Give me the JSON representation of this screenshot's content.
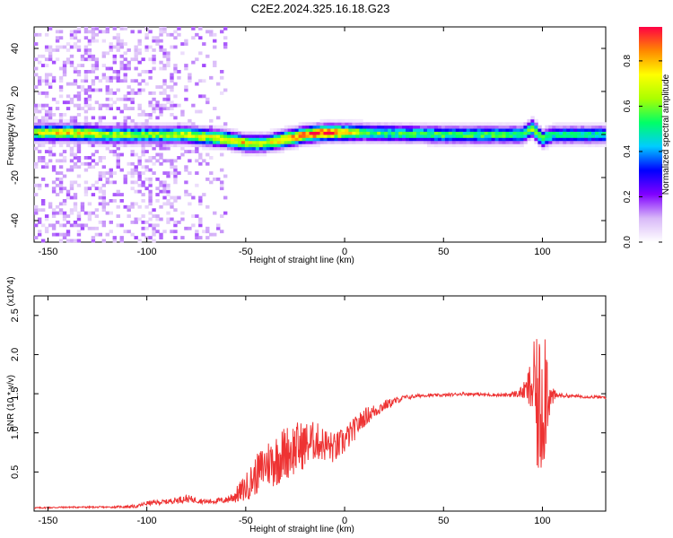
{
  "title": "C2E2.2024.325.16.18.G23",
  "chart_data": [
    {
      "type": "heatmap",
      "xlabel": "Height of straight line (km)",
      "ylabel": "Frequency (Hz)",
      "xlim": [
        -157,
        132
      ],
      "ylim": [
        -50,
        50
      ],
      "xticks": [
        -150,
        -100,
        -50,
        0,
        50,
        100
      ],
      "yticks": [
        -40,
        -20,
        0,
        20,
        40
      ],
      "colorbar": {
        "label": "Normalized spectral amplitude",
        "range": [
          0,
          0.95
        ],
        "ticks": [
          0.0,
          0.2,
          0.4,
          0.6,
          0.8
        ],
        "tick_labels": [
          "0.0",
          "0.2",
          "0.4",
          "0.6",
          "0.8"
        ],
        "colormap": [
          "#ffffff",
          "#d8b8f8",
          "#8000ff",
          "#0000ff",
          "#00ccff",
          "#00ff66",
          "#aaff00",
          "#ffff00",
          "#ff8800",
          "#ff0044"
        ]
      },
      "ridge": {
        "x": [
          -157,
          -140,
          -120,
          -100,
          -80,
          -70,
          -60,
          -50,
          -40,
          -30,
          -20,
          -10,
          0,
          10,
          50,
          90,
          95,
          100,
          105,
          132
        ],
        "center_hz": [
          1,
          1,
          0,
          0,
          0,
          -1,
          -2,
          -4,
          -4,
          -2,
          0,
          1,
          1,
          1,
          0,
          0,
          3,
          -2,
          0,
          0
        ],
        "peak": [
          0.7,
          0.75,
          0.65,
          0.6,
          0.7,
          0.7,
          0.75,
          0.75,
          0.7,
          0.8,
          0.9,
          0.9,
          0.8,
          0.55,
          0.55,
          0.55,
          0.7,
          0.6,
          0.5,
          0.5
        ]
      }
    },
    {
      "type": "line",
      "xlabel": "Height of straight line (km)",
      "ylabel": "SNR (10 * v/v)",
      "y_multiplier": "(x10^4)",
      "xlim": [
        -157,
        132
      ],
      "ylim": [
        0,
        2.75
      ],
      "xticks": [
        -150,
        -100,
        -50,
        0,
        50,
        100
      ],
      "yticks": [
        0.5,
        1.0,
        1.5,
        2.0,
        2.5
      ],
      "ytick_labels": [
        "0.5",
        "1.0",
        "1.5",
        "2.0",
        "2.5"
      ],
      "series": [
        {
          "color": "#ee3333",
          "x": [
            -157,
            -140,
            -120,
            -105,
            -100,
            -90,
            -80,
            -70,
            -60,
            -55,
            -50,
            -45,
            -40,
            -35,
            -30,
            -25,
            -20,
            -15,
            -10,
            -5,
            0,
            5,
            10,
            20,
            30,
            40,
            50,
            60,
            70,
            80,
            88,
            92,
            96,
            98,
            100,
            102,
            104,
            108,
            115,
            125,
            132
          ],
          "y": [
            0.04,
            0.05,
            0.05,
            0.06,
            0.1,
            0.12,
            0.16,
            0.12,
            0.14,
            0.2,
            0.3,
            0.45,
            0.6,
            0.65,
            0.75,
            0.8,
            0.85,
            0.9,
            0.85,
            0.8,
            0.9,
            1.05,
            1.2,
            1.35,
            1.45,
            1.48,
            1.48,
            1.5,
            1.49,
            1.48,
            1.5,
            1.55,
            1.6,
            1.2,
            1.5,
            1.7,
            1.45,
            1.48,
            1.47,
            1.46,
            1.45
          ],
          "noise": [
            0.01,
            0.01,
            0.01,
            0.02,
            0.03,
            0.03,
            0.05,
            0.03,
            0.04,
            0.1,
            0.18,
            0.25,
            0.3,
            0.35,
            0.35,
            0.35,
            0.3,
            0.25,
            0.22,
            0.2,
            0.18,
            0.15,
            0.12,
            0.07,
            0.03,
            0.02,
            0.02,
            0.02,
            0.02,
            0.02,
            0.05,
            0.15,
            0.6,
            1.0,
            1.1,
            0.9,
            0.15,
            0.03,
            0.02,
            0.02,
            0.02
          ]
        }
      ]
    }
  ]
}
